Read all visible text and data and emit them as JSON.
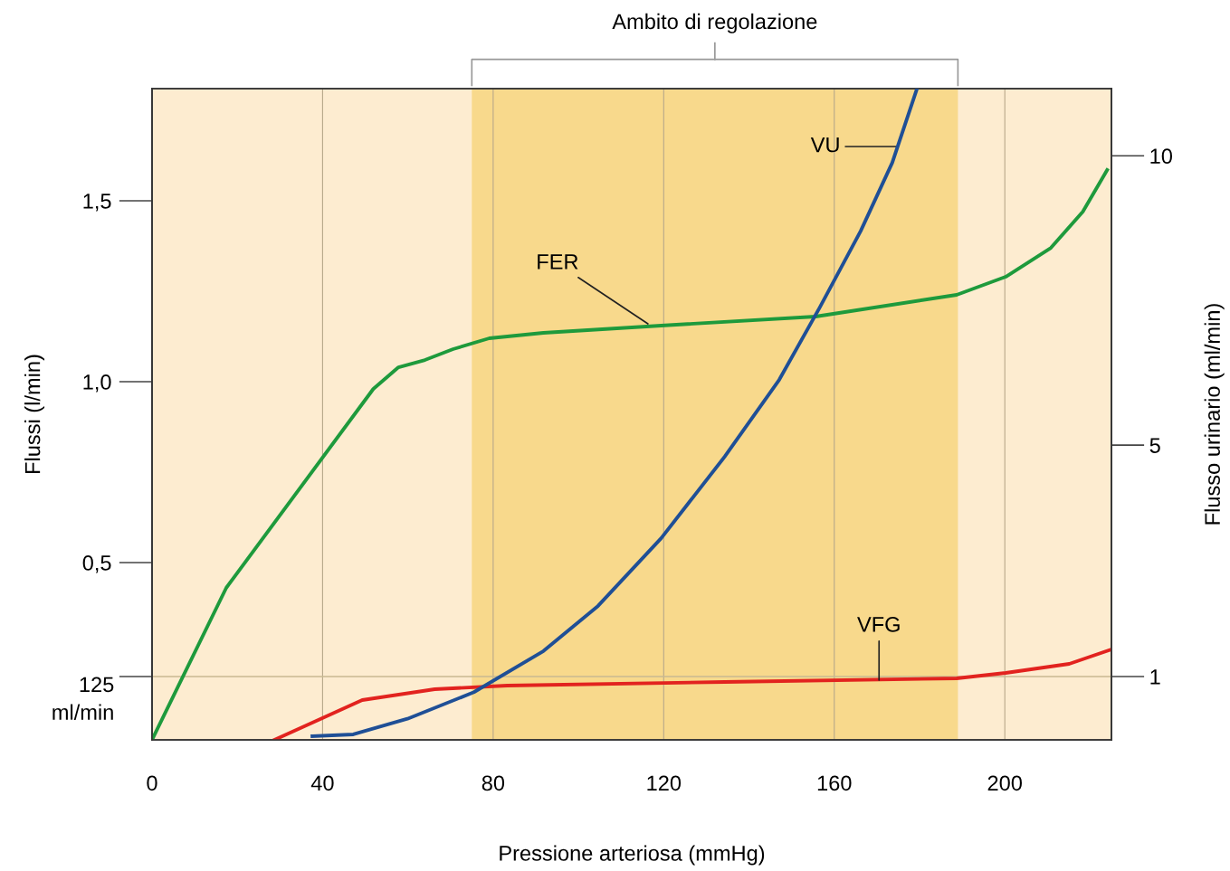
{
  "chart_data": {
    "type": "line",
    "xlabel": "Pressione arteriosa (mmHg)",
    "ylabel": "Flussi (l/min)",
    "y2label": "Flusso urinario (ml/min)",
    "xlim": [
      0,
      225
    ],
    "xticks": [
      0,
      40,
      80,
      120,
      160,
      200
    ],
    "ylim": [
      0.01,
      1.81
    ],
    "yticks": [
      {
        "value": 0.185,
        "label": null
      },
      {
        "value": 0.5,
        "label": "0,5"
      },
      {
        "value": 1.0,
        "label": "1,0"
      },
      {
        "value": 1.5,
        "label": "1,5"
      }
    ],
    "y2lim": [
      -0.094,
      11.16
    ],
    "y2ticks": [
      1,
      5,
      10
    ],
    "grid": "x",
    "bands": [
      {
        "axis": "x",
        "from": 0,
        "to": 225,
        "color": "#fdecd0"
      },
      {
        "axis": "x",
        "from": 75,
        "to": 189,
        "label": "Ambito di regolazione",
        "color": "#f8d98c"
      }
    ],
    "ref_lines": [
      {
        "axis": "y",
        "value": 0.185,
        "label": "125\nml/min",
        "color": "#c9b892"
      }
    ],
    "series": [
      {
        "color": "#1e9a3c",
        "x": [
          0,
          17.4,
          51.9,
          57.8,
          64,
          70.6,
          79.1,
          91.8,
          119.4,
          155.6,
          188.7,
          200.2,
          210.8,
          218.3,
          224
        ],
        "values": [
          0.01,
          0.43,
          0.98,
          1.04,
          1.06,
          1.09,
          1.12,
          1.135,
          1.155,
          1.18,
          1.24,
          1.29,
          1.37,
          1.47,
          1.585
        ]
      },
      {
        "color": "#e2231f",
        "x": [
          28.7,
          49.3,
          66.3,
          83.3,
          134.3,
          188.7,
          200.2,
          215.1,
          225
        ],
        "values": [
          0.01,
          0.12,
          0.15,
          0.16,
          0.17,
          0.18,
          0.195,
          0.22,
          0.26
        ]
      },
      {
        "color": "#1f4f96",
        "axis": "y2",
        "x": [
          37.6,
          47.2,
          59.9,
          75.5,
          91.8,
          104.6,
          119.4,
          134.3,
          147.1,
          156.6,
          166.2,
          173.6,
          179.4
        ],
        "values": [
          -0.03,
          0.0,
          0.27,
          0.73,
          1.44,
          2.22,
          3.39,
          4.8,
          6.13,
          7.38,
          8.7,
          9.88,
          11.16
        ]
      }
    ],
    "annotations": [
      {
        "text": "FER",
        "x": 116.3,
        "y": 1.16
      },
      {
        "text": "VU",
        "x": 174.7,
        "y": 1.65
      },
      {
        "text": "VFG",
        "x": 170.5,
        "y": 0.175
      }
    ]
  }
}
